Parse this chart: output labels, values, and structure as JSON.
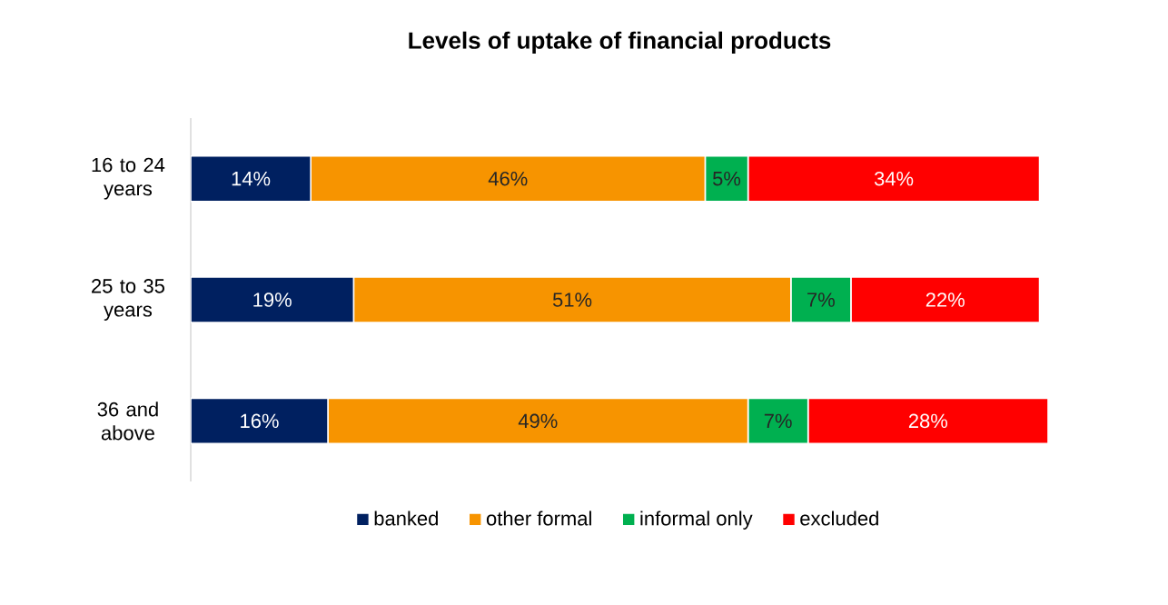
{
  "chart_data": {
    "type": "bar",
    "orientation": "horizontal",
    "stacked": true,
    "title": "Levels of uptake of financial products",
    "categories": [
      "16 to 24 years",
      "25 to 35 years",
      "36 and above"
    ],
    "series": [
      {
        "name": "banked",
        "color": "#002060",
        "values": [
          14,
          19,
          16
        ],
        "value_labels": [
          "14%",
          "19%",
          "16%"
        ]
      },
      {
        "name": "other formal",
        "color": "#f79400",
        "values": [
          46,
          51,
          49
        ],
        "value_labels": [
          "46%",
          "51%",
          "49%"
        ]
      },
      {
        "name": "informal only",
        "color": "#00b050",
        "values": [
          5,
          7,
          7
        ],
        "value_labels": [
          "5%",
          "7%",
          "7%"
        ]
      },
      {
        "name": "excluded",
        "color": "#ff0000",
        "values": [
          34,
          22,
          28
        ],
        "value_labels": [
          "34%",
          "22%",
          "28%"
        ]
      }
    ],
    "legend": "bottom",
    "grid": false
  }
}
